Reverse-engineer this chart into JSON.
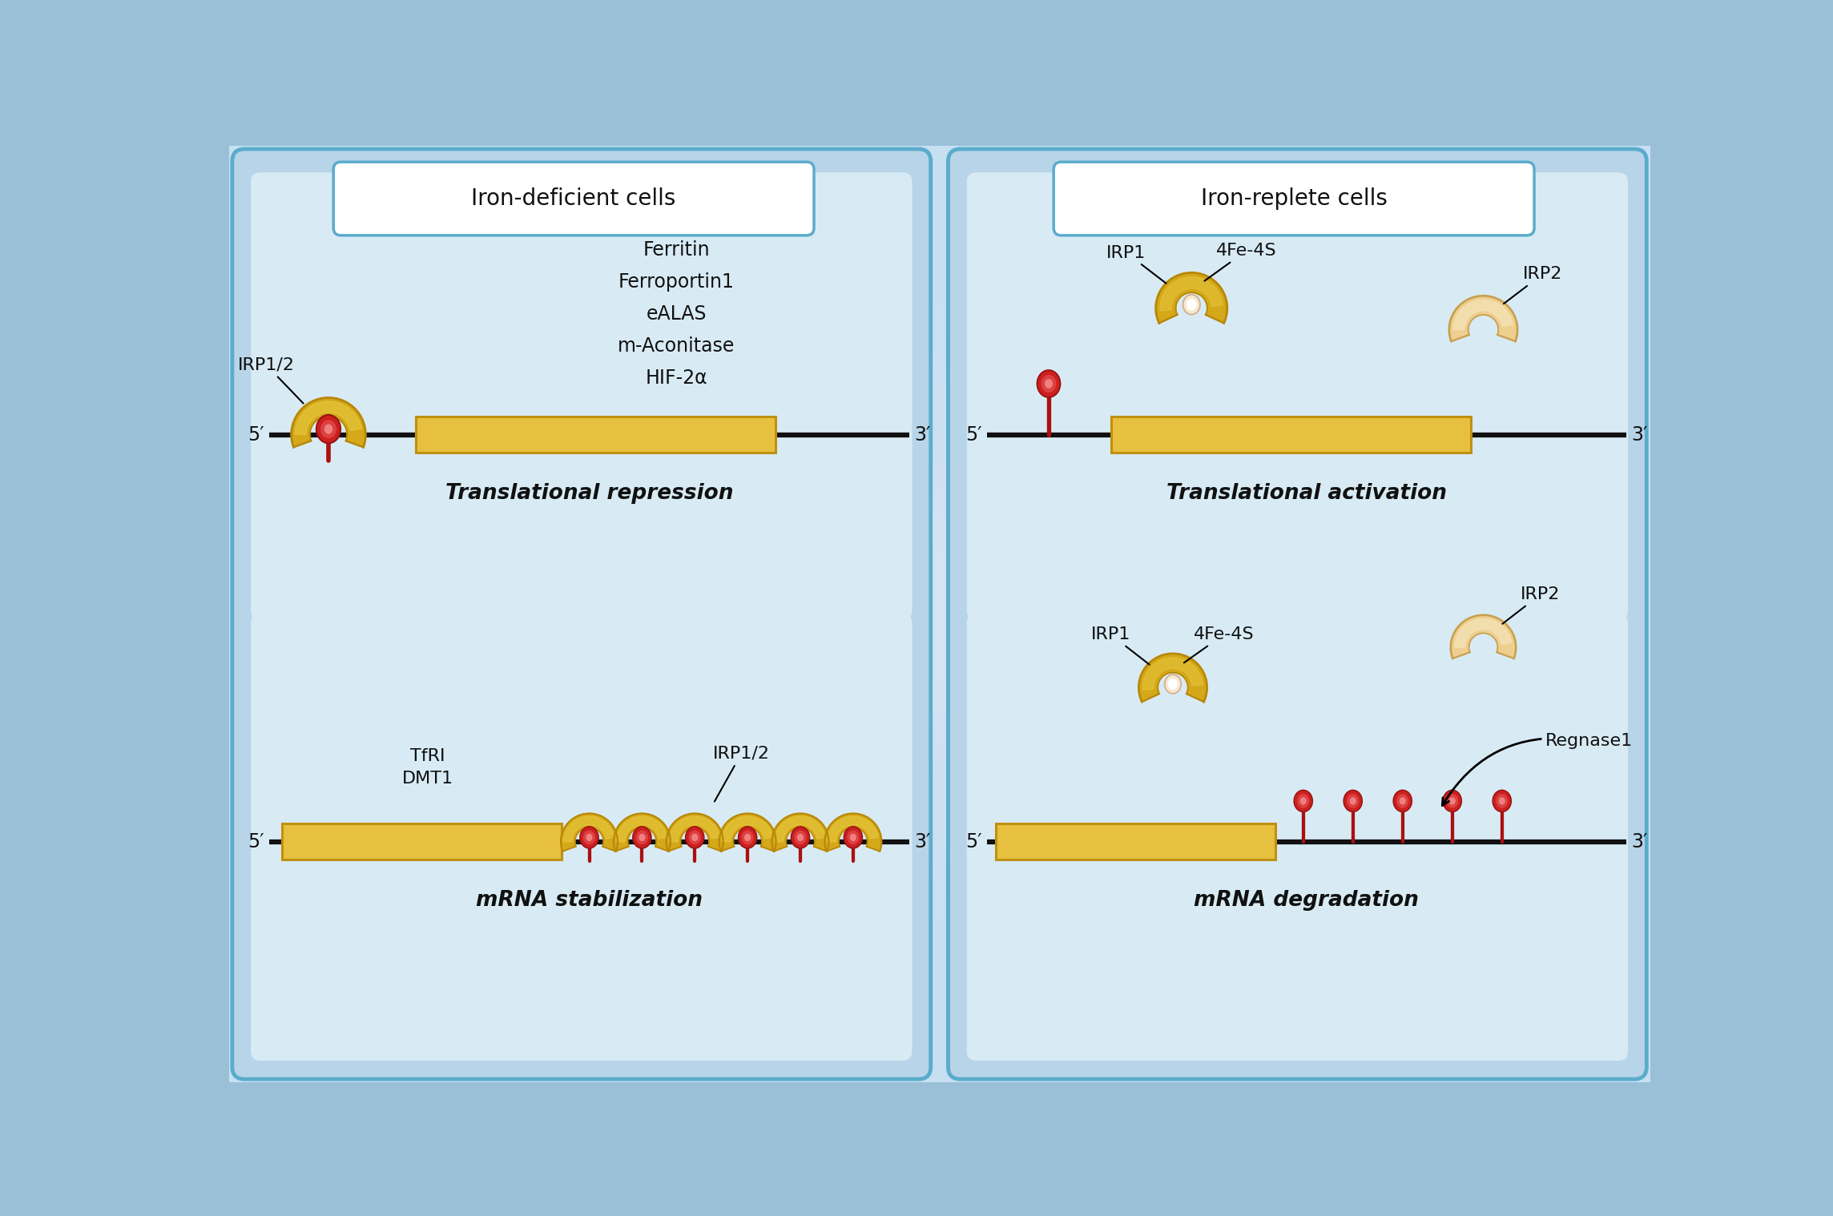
{
  "bg_outer": "#a8cce0",
  "bg_panel": "#c8dff0",
  "bg_white": "#ffffff",
  "border_color": "#5aaccc",
  "title_left": "Iron-deficient cells",
  "title_right": "Iron-replete cells",
  "gold_dark": "#b8880a",
  "gold_mid": "#cc9a10",
  "gold_body": "#d4a818",
  "gold_light": "#e8c840",
  "gold_pale": "#f0d870",
  "tan_dark": "#c8a050",
  "tan_color": "#ddb870",
  "tan_pale": "#eecf90",
  "tan_very_pale": "#f5e4b8",
  "irp_inner_light": "#f8e8d0",
  "irp_inner_border": "#d4b090",
  "red_dark": "#991010",
  "red_mid": "#bb1818",
  "red_body": "#cc2020",
  "red_light": "#dd4040",
  "red_pale": "#ee8080",
  "red_stem": "#aa1010",
  "mrna_color": "#e8c040",
  "mrna_border": "#c09010",
  "line_color": "#111111",
  "text_color": "#111111",
  "irp12_label": "IRP1/2",
  "irp1_label": "IRP1",
  "irp2_label": "IRP2",
  "fe4s_label": "4Fe-4S",
  "ferritin_labels": [
    "Ferritin",
    "Ferroportin1",
    "eALAS",
    "m-Aconitase",
    "HIF-2α"
  ],
  "label_trans_rep": "Translational repression",
  "label_trans_act": "Translational activation",
  "label_mrna_stab": "mRNA stabilization",
  "label_mrna_deg": "mRNA degradation",
  "regnase_label": "Regnase1",
  "five_prime": "5′",
  "three_prime": "3′"
}
